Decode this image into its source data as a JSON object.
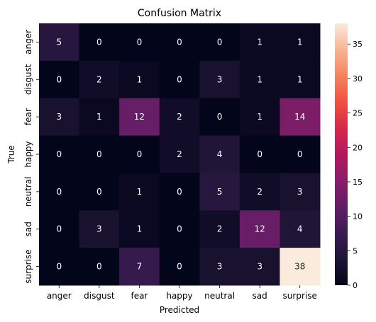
{
  "chart_data": {
    "type": "heatmap",
    "title": "Confusion Matrix",
    "xlabel": "Predicted",
    "ylabel": "True",
    "x_categories": [
      "anger",
      "disgust",
      "fear",
      "happy",
      "neutral",
      "sad",
      "surprise"
    ],
    "y_categories": [
      "anger",
      "disgust",
      "fear",
      "happy",
      "neutral",
      "sad",
      "surprise"
    ],
    "values": [
      [
        5,
        0,
        0,
        0,
        0,
        1,
        1
      ],
      [
        0,
        2,
        1,
        0,
        3,
        1,
        1
      ],
      [
        3,
        1,
        12,
        2,
        0,
        1,
        14
      ],
      [
        0,
        0,
        0,
        2,
        4,
        0,
        0
      ],
      [
        0,
        0,
        1,
        0,
        5,
        2,
        3
      ],
      [
        0,
        3,
        1,
        0,
        2,
        12,
        4
      ],
      [
        0,
        0,
        7,
        0,
        3,
        3,
        38
      ]
    ],
    "value_range": [
      0,
      38
    ],
    "colormap": "rocket",
    "colorbar": {
      "ticks": [
        0,
        5,
        10,
        15,
        20,
        25,
        30,
        35
      ],
      "placement": "right"
    },
    "annotated": true,
    "grid": false
  }
}
